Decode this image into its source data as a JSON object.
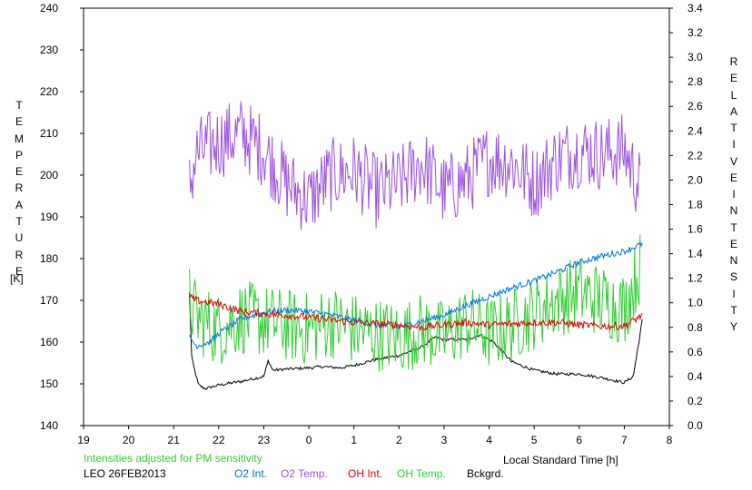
{
  "chart_data": {
    "type": "line",
    "station": "LEO 26FEB2013",
    "note": "Intensities adjusted for PM sensitivity",
    "colors": {
      "o2_int": "#0070e0",
      "o2_temp": "#9e50e0",
      "oh_int": "#e00000",
      "oh_temp": "#33cc33",
      "bckgrd": "#000000",
      "note": "#33cc33"
    },
    "left_axis": {
      "label_letters": [
        "T",
        "E",
        "M",
        "P",
        "E",
        "R",
        "A",
        "T",
        "U",
        "R",
        "E"
      ],
      "unit": "[K]",
      "ylim": [
        140,
        240
      ],
      "ticks": [
        "140",
        "150",
        "160",
        "170",
        "180",
        "190",
        "200",
        "210",
        "220",
        "230",
        "240"
      ]
    },
    "right_axis": {
      "label_letters_1": [
        "R",
        "E",
        "L",
        "A",
        "T",
        "I",
        "V",
        "E"
      ],
      "label_letters_2": [
        "I",
        "N",
        "T",
        "E",
        "N",
        "S",
        "I",
        "T",
        "Y"
      ],
      "ylim": [
        0.0,
        3.4
      ],
      "ticks": [
        "0.0",
        "0.2",
        "0.4",
        "0.6",
        "0.8",
        "1.0",
        "1.2",
        "1.4",
        "1.6",
        "1.8",
        "2.0",
        "2.2",
        "2.4",
        "2.6",
        "2.8",
        "3.0",
        "3.2",
        "3.4"
      ]
    },
    "x_axis": {
      "xlabel": "Local Standard Time [h]",
      "xlim": [
        19,
        32
      ],
      "ticks": [
        "19",
        "20",
        "21",
        "22",
        "23",
        "0",
        "1",
        "2",
        "3",
        "4",
        "5",
        "6",
        "7",
        "8"
      ]
    },
    "series": [
      {
        "name": "O2 Int.",
        "key": "o2_int",
        "axis": "right",
        "x": [
          21.35,
          21.5,
          21.8,
          22.0,
          22.5,
          23.0,
          23.5,
          24.0,
          24.5,
          25.0,
          25.5,
          26.0,
          26.5,
          27.0,
          27.5,
          28.0,
          28.5,
          29.0,
          29.5,
          30.0,
          30.5,
          31.0,
          31.4
        ],
        "y": [
          0.72,
          0.65,
          0.68,
          0.75,
          0.87,
          0.92,
          0.94,
          0.93,
          0.9,
          0.86,
          0.82,
          0.8,
          0.85,
          0.9,
          0.98,
          1.05,
          1.12,
          1.18,
          1.25,
          1.33,
          1.38,
          1.42,
          1.48
        ],
        "noise": 0.025
      },
      {
        "name": "O2 Temp.",
        "key": "o2_temp",
        "axis": "left",
        "x": [
          21.35,
          21.5,
          22.0,
          22.5,
          23.0,
          23.5,
          24.0,
          24.5,
          25.0,
          25.5,
          26.0,
          26.5,
          27.0,
          27.5,
          28.0,
          28.5,
          29.0,
          29.5,
          30.0,
          30.5,
          31.0,
          31.35
        ],
        "y": [
          197,
          205,
          208,
          210,
          206,
          198,
          194,
          200,
          201,
          196,
          198,
          203,
          196,
          199,
          204,
          203,
          198,
          204,
          206,
          205,
          206,
          197
        ],
        "noise": 9
      },
      {
        "name": "OH Int.",
        "key": "oh_int",
        "axis": "right",
        "x": [
          21.35,
          21.5,
          22.0,
          22.5,
          23.0,
          23.5,
          24.0,
          24.5,
          25.0,
          25.5,
          26.0,
          26.5,
          27.0,
          27.5,
          28.0,
          28.5,
          29.0,
          29.5,
          30.0,
          30.5,
          31.0,
          31.4
        ],
        "y": [
          1.05,
          1.02,
          0.99,
          0.93,
          0.91,
          0.9,
          0.88,
          0.86,
          0.84,
          0.83,
          0.82,
          0.8,
          0.82,
          0.84,
          0.82,
          0.83,
          0.84,
          0.84,
          0.82,
          0.81,
          0.81,
          0.9
        ],
        "noise": 0.03
      },
      {
        "name": "OH Temp.",
        "key": "oh_temp",
        "axis": "left",
        "x": [
          21.35,
          21.5,
          22.0,
          22.5,
          23.0,
          23.5,
          24.0,
          24.5,
          25.0,
          25.5,
          26.0,
          26.5,
          27.0,
          27.5,
          28.0,
          28.5,
          29.0,
          29.5,
          30.0,
          30.5,
          31.0,
          31.35
        ],
        "y": [
          170,
          166,
          163,
          166,
          165,
          164,
          163,
          165,
          163,
          162,
          161,
          163,
          161,
          165,
          162,
          164,
          167,
          170,
          172,
          170,
          168,
          178
        ],
        "noise": 9
      },
      {
        "name": "Bckgrd.",
        "key": "bckgrd",
        "axis": "right",
        "x": [
          21.35,
          21.4,
          21.55,
          21.7,
          22.0,
          22.5,
          23.0,
          23.1,
          23.2,
          23.5,
          24.0,
          24.3,
          24.7,
          25.0,
          25.5,
          26.0,
          26.5,
          26.8,
          27.0,
          27.5,
          27.8,
          28.1,
          28.5,
          29.0,
          29.5,
          30.0,
          30.5,
          31.0,
          31.2,
          31.4
        ],
        "y": [
          1.08,
          0.55,
          0.33,
          0.3,
          0.33,
          0.36,
          0.4,
          0.53,
          0.45,
          0.46,
          0.47,
          0.48,
          0.47,
          0.49,
          0.54,
          0.57,
          0.64,
          0.72,
          0.7,
          0.7,
          0.74,
          0.68,
          0.52,
          0.45,
          0.42,
          0.42,
          0.39,
          0.35,
          0.4,
          0.86
        ],
        "noise": 0.012
      }
    ]
  }
}
